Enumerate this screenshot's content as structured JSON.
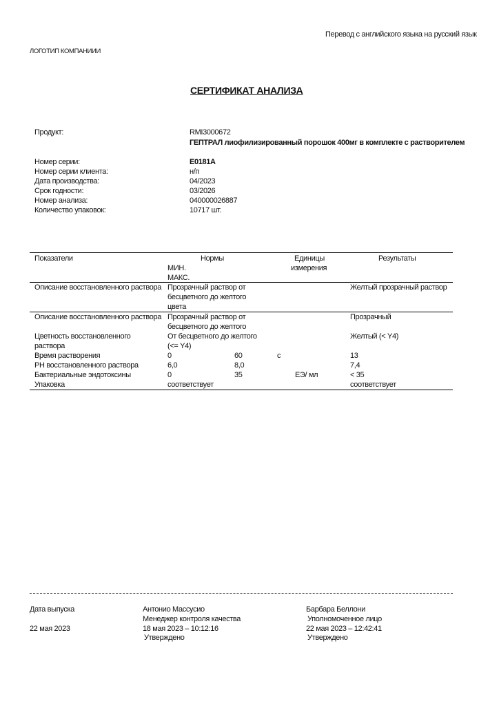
{
  "header": {
    "translation_note": "Перевод с английского языка на русский язык",
    "logo_text": "ЛОГОТИП КОМПАНИИИ"
  },
  "title": "СЕРТИФИКАТ АНАЛИЗА",
  "info": {
    "product_label": "Продукт:",
    "product_code": "RMI3000672",
    "product_name": "ГЕПТРАЛ лиофилизированный порошок 400мг в комплекте с растворителем",
    "fields": [
      {
        "label": "Номер серии:",
        "value": "E0181A"
      },
      {
        "label": "Номер серии клиента:",
        "value": "н/п"
      },
      {
        "label": "Дата производства:",
        "value": "04/2023"
      },
      {
        "label": "Срок годности:",
        "value": "03/2026"
      },
      {
        "label": "Номер анализа:",
        "value": "040000026887"
      },
      {
        "label": "Количество упаковок:",
        "value": "10717 шт."
      }
    ]
  },
  "table": {
    "headers": {
      "param": "Показатели",
      "norms": "Нормы",
      "min": "МИН.",
      "max": "МАКС.",
      "units_1": "Единицы",
      "units_2": "измерения",
      "results": "Результаты"
    },
    "rows": [
      {
        "param": "Описание восстановленного раствора",
        "norm": "Прозрачный раствор от бесцветного до желтого цвета",
        "result": "Желтый прозрачный раствор"
      },
      {
        "param": "Описание восстановленного раствора",
        "norm": "Прозрачный раствор от бесцветного до желтого",
        "result": "Прозрачный"
      },
      {
        "param": "Цветность восстановленного раствора",
        "norm": "От бесцветного до желтого (<= Y4)",
        "result": "Желтый (< Y4)"
      },
      {
        "param": "Время растворения",
        "min": "0",
        "max": "60",
        "unit": "с",
        "result": "13"
      },
      {
        "param": "PH восстановленного раствора",
        "min": "6,0",
        "max": "8,0",
        "result": "7,4"
      },
      {
        "param": "Бактериальные эндотоксины",
        "min": "0",
        "max": "35",
        "unit": "ЕЭ/ мл",
        "result": "< 35"
      },
      {
        "param": "Упаковка",
        "norm": "соответствует",
        "result": "соответствует"
      }
    ]
  },
  "footer": {
    "release_label": "Дата выпуска",
    "release_date": "22 мая 2023",
    "signer1": {
      "name": "Антонио Массусио",
      "role": "Менеджер контроля качества",
      "datetime": "18 мая 2023 – 10:12:16",
      "status": "Утверждено"
    },
    "signer2": {
      "name": "Барбара Беллони",
      "role": "Уполномоченное лицо",
      "datetime": "22 мая 2023 – 12:42:41",
      "status": "Утверждено"
    }
  }
}
